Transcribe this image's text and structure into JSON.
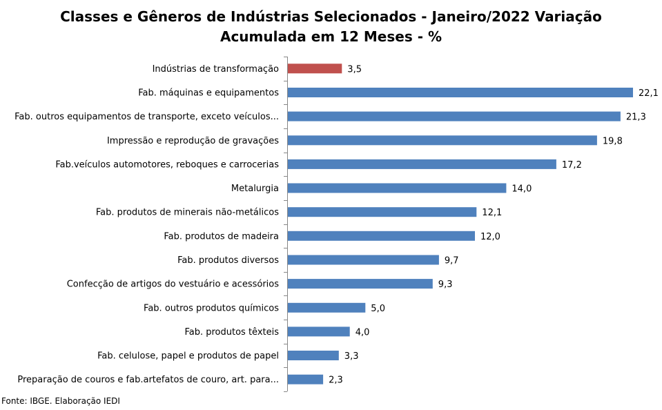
{
  "chart_data": {
    "type": "bar",
    "orientation": "horizontal",
    "title_line1": "Classes e Gêneros de Indústrias Selecionados - Janeiro/2022 Variação",
    "title_line2": "Acumulada em 12 Meses - %",
    "categories": [
      "Indústrias de transformação",
      "Fab. máquinas e equipamentos",
      "Fab. outros equipamentos de transporte, exceto veículos...",
      "Impressão e reprodução de gravações",
      "Fab.veículos automotores, reboques e carrocerias",
      "Metalurgia",
      "Fab. produtos de minerais não-metálicos",
      "Fab. produtos de madeira",
      "Fab. produtos diversos",
      "Confecção de artigos do vestuário e acessórios",
      "Fab. outros produtos químicos",
      "Fab. produtos têxteis",
      "Fab. celulose, papel e produtos de papel",
      "Preparação de couros e fab.artefatos de couro, art. para..."
    ],
    "values": [
      3.5,
      22.1,
      21.3,
      19.8,
      17.2,
      14.0,
      12.1,
      12.0,
      9.7,
      9.3,
      5.0,
      4.0,
      3.3,
      2.3
    ],
    "value_labels": [
      "3,5",
      "22,1",
      "21,3",
      "19,8",
      "17,2",
      "14,0",
      "12,1",
      "12,0",
      "9,7",
      "9,3",
      "5,0",
      "4,0",
      "3,3",
      "2,3"
    ],
    "highlight_index": 0,
    "colors": {
      "highlight": "#C0504D",
      "default": "#4F81BD",
      "axis": "#868686"
    },
    "xlim": [
      0,
      22.1
    ],
    "grid": false,
    "legend": "none"
  },
  "source": "Fonte: IBGE. Elaboração IEDI"
}
